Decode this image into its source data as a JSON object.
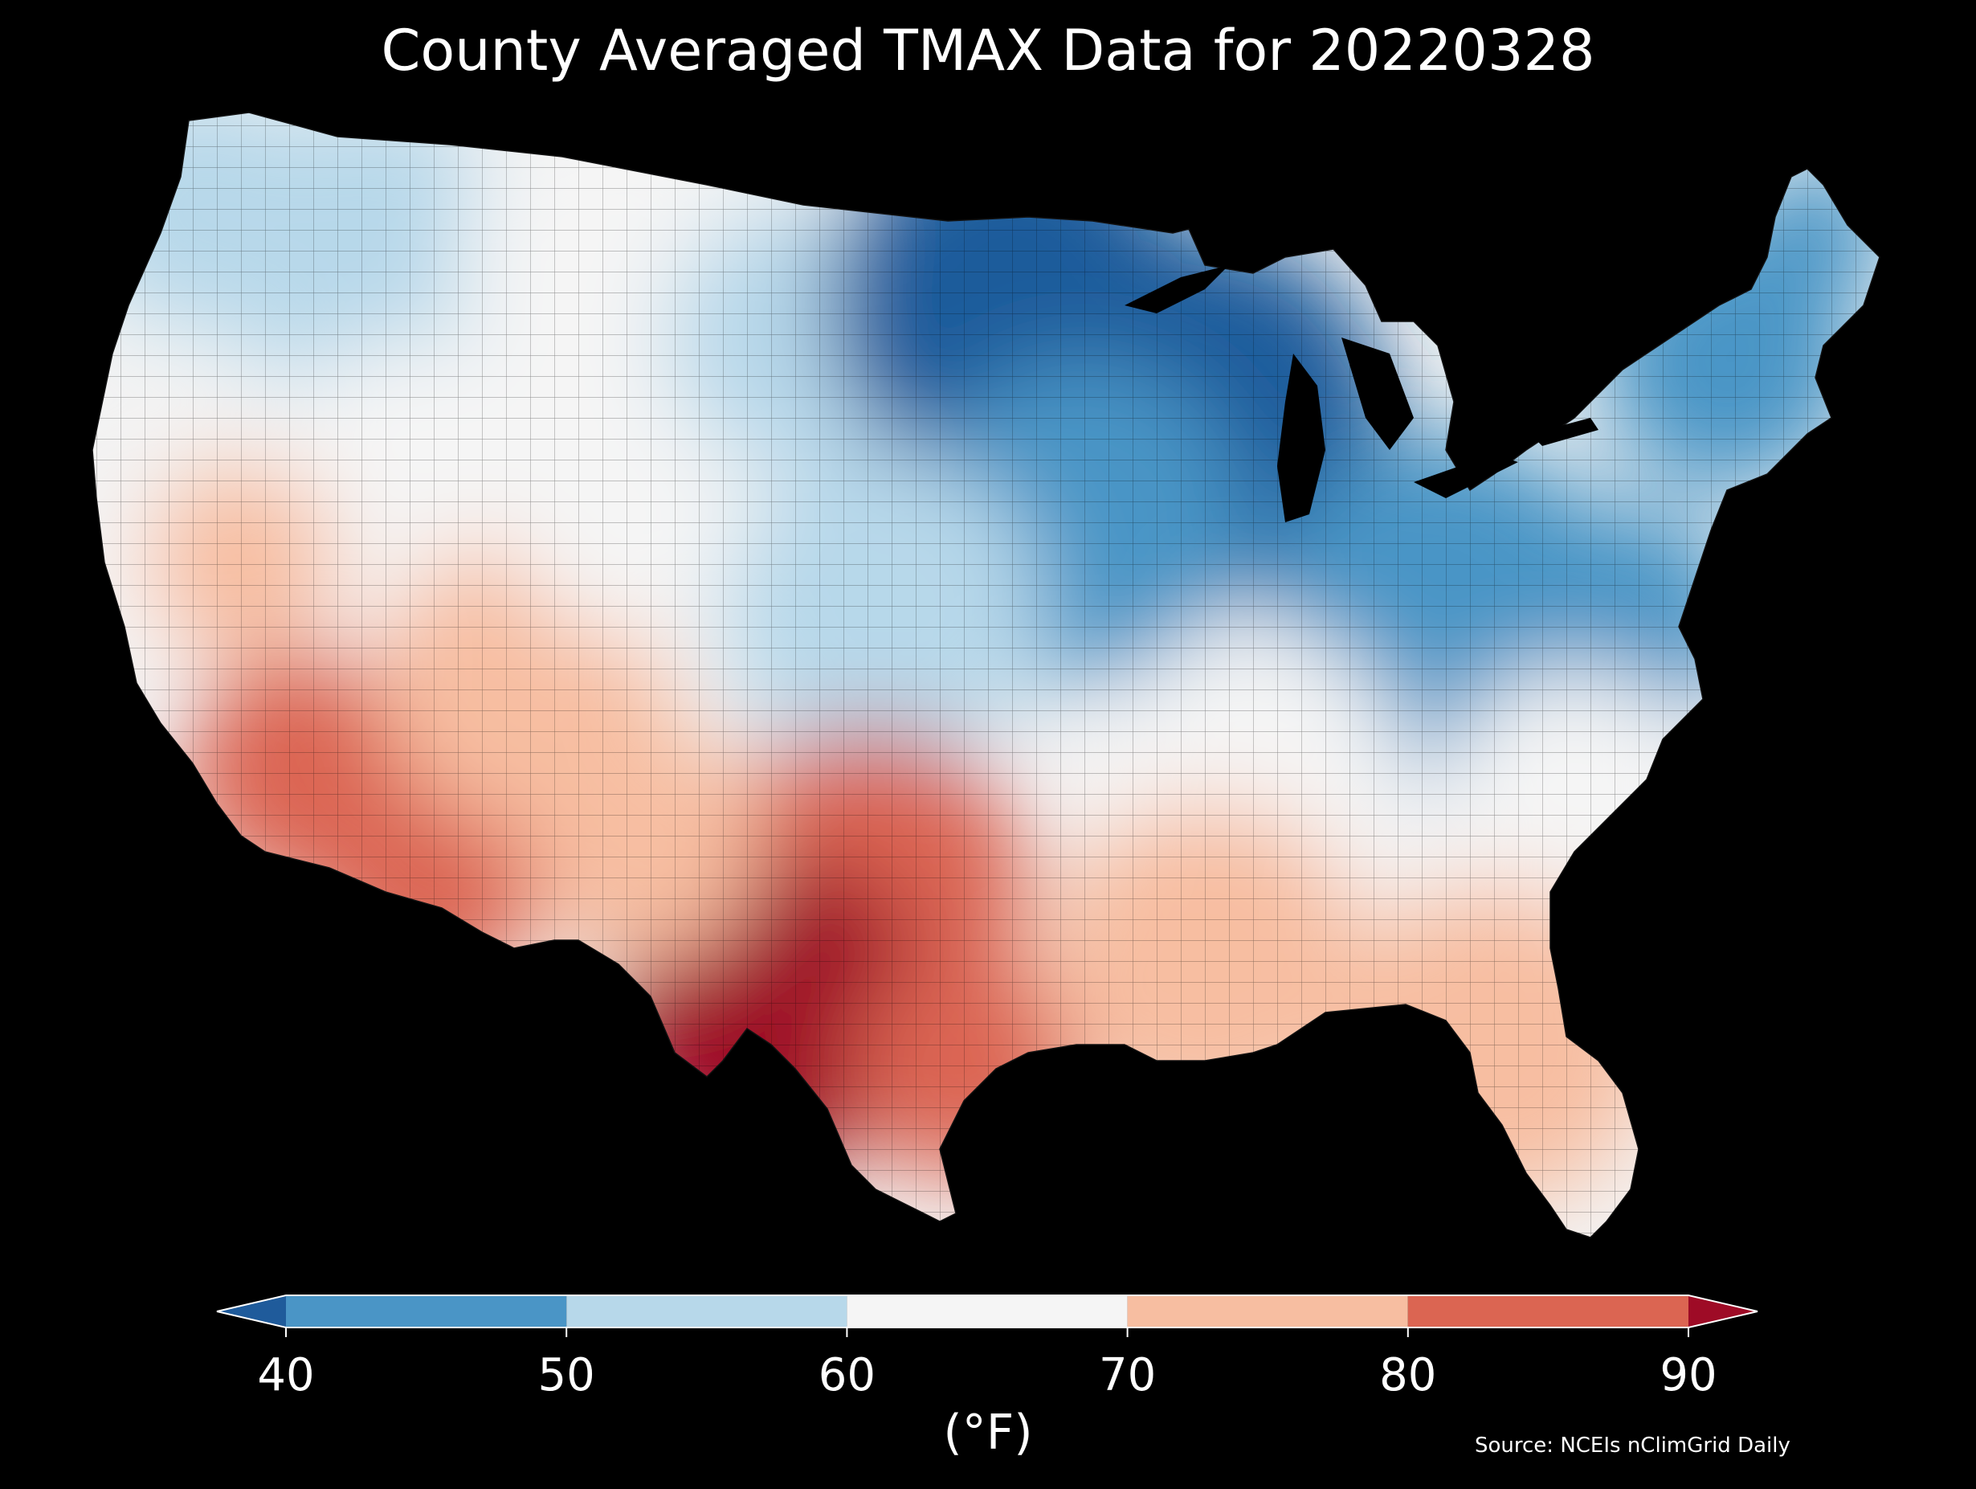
{
  "title": "County Averaged TMAX Data for 20220328",
  "source": "Source: NCEIs nClimGrid Daily",
  "colorbar": {
    "label": "(°F)",
    "ticks": [
      "40",
      "50",
      "60",
      "70",
      "80",
      "90"
    ],
    "tick_values": [
      40,
      50,
      60,
      70,
      80,
      90
    ],
    "bins": [
      {
        "from": null,
        "to": 40,
        "color": "#1f5b9b"
      },
      {
        "from": 40,
        "to": 50,
        "color": "#4a95c6"
      },
      {
        "from": 50,
        "to": 60,
        "color": "#b7d8ea"
      },
      {
        "from": 60,
        "to": 70,
        "color": "#f5f5f5"
      },
      {
        "from": 70,
        "to": 80,
        "color": "#f7bea1"
      },
      {
        "from": 80,
        "to": 90,
        "color": "#db6552"
      },
      {
        "from": 90,
        "to": null,
        "color": "#9e0b26"
      }
    ],
    "extend": "both"
  },
  "map": {
    "projection": "Albers equal-area (conterminous United States)",
    "variable": "TMAX",
    "date": "20220328",
    "background": "#000000",
    "region_values": [
      {
        "region": "Pacific Northwest coast",
        "tmax_f": 55
      },
      {
        "region": "Northern Rockies / Idaho",
        "tmax_f": 58
      },
      {
        "region": "Great Basin / Nevada",
        "tmax_f": 65
      },
      {
        "region": "Northern Great Plains / Montana",
        "tmax_f": 62
      },
      {
        "region": "California coast",
        "tmax_f": 60
      },
      {
        "region": "Central California valley",
        "tmax_f": 72
      },
      {
        "region": "Southern California / Southwest desert",
        "tmax_f": 82
      },
      {
        "region": "Southern Arizona",
        "tmax_f": 86
      },
      {
        "region": "Four Corners / Colorado Plateau",
        "tmax_f": 70
      },
      {
        "region": "Colorado / Wyoming",
        "tmax_f": 62
      },
      {
        "region": "Dakotas west",
        "tmax_f": 55
      },
      {
        "region": "Minnesota / Upper Midwest",
        "tmax_f": 35
      },
      {
        "region": "Wisconsin / Michigan",
        "tmax_f": 37
      },
      {
        "region": "Iowa / Illinois",
        "tmax_f": 45
      },
      {
        "region": "Nebraska / Kansas",
        "tmax_f": 55
      },
      {
        "region": "Ohio Valley / Appalachians",
        "tmax_f": 40
      },
      {
        "region": "Virginia / Maryland",
        "tmax_f": 48
      },
      {
        "region": "New England",
        "tmax_f": 42
      },
      {
        "region": "Northern Maine",
        "tmax_f": 46
      },
      {
        "region": "Carolinas",
        "tmax_f": 60
      },
      {
        "region": "Tennessee / Kentucky south",
        "tmax_f": 60
      },
      {
        "region": "Oklahoma / North Texas",
        "tmax_f": 86
      },
      {
        "region": "West and South Texas",
        "tmax_f": 91
      },
      {
        "region": "Texas Gulf coast",
        "tmax_f": 80
      },
      {
        "region": "Louisiana / Mississippi / Alabama",
        "tmax_f": 75
      },
      {
        "region": "Georgia / Florida",
        "tmax_f": 77
      },
      {
        "region": "Southern New Mexico",
        "tmax_f": 78
      }
    ]
  }
}
